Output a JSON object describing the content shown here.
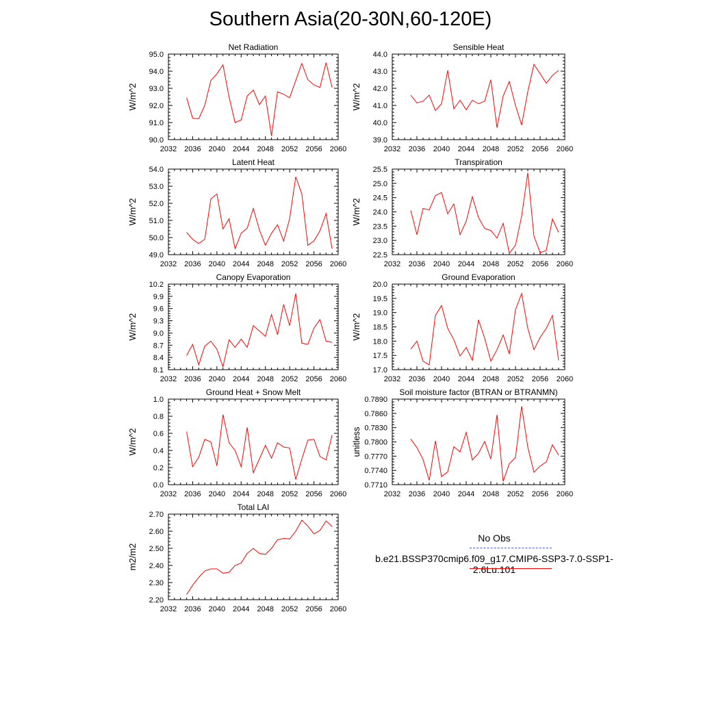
{
  "title": "Southern Asia(20-30N,60-120E)",
  "legend": {
    "obs_label": "No Obs",
    "case_label": "b.e21.BSSP370cmip6.f09_g17.CMIP6-SSP3-7.0-SSP1-2.6Lu.101",
    "obs_color": "#4a5ad8",
    "case_color": "#ff0000"
  },
  "chart_data": [
    {
      "type": "line",
      "title": "Net Radiation",
      "ylabel": "W/m^2",
      "xlabel": "",
      "xlim": [
        2032,
        2060
      ],
      "ylim": [
        90.0,
        95.0
      ],
      "xticks": [
        "2032",
        "2036",
        "2040",
        "2044",
        "2048",
        "2052",
        "2056",
        "2060"
      ],
      "yticks": [
        "90.0",
        "91.0",
        "92.0",
        "93.0",
        "94.0",
        "95.0"
      ],
      "x": [
        2035,
        2036,
        2037,
        2038,
        2039,
        2040,
        2041,
        2042,
        2043,
        2044,
        2045,
        2046,
        2047,
        2048,
        2049,
        2050,
        2051,
        2052,
        2053,
        2054,
        2055,
        2056,
        2057,
        2058,
        2059
      ],
      "values": [
        92.45,
        91.25,
        91.22,
        92.0,
        93.45,
        93.85,
        94.38,
        92.5,
        91.0,
        91.15,
        92.55,
        92.9,
        92.05,
        92.55,
        90.22,
        92.8,
        92.65,
        92.45,
        93.45,
        94.45,
        93.5,
        93.2,
        93.05,
        94.5,
        93.05
      ],
      "color": "#ff0000"
    },
    {
      "type": "line",
      "title": "Sensible Heat",
      "ylabel": "W/m^2",
      "xlabel": "",
      "xlim": [
        2032,
        2060
      ],
      "ylim": [
        39.0,
        44.0
      ],
      "xticks": [
        "2032",
        "2036",
        "2040",
        "2044",
        "2048",
        "2052",
        "2056",
        "2060"
      ],
      "yticks": [
        "39.0",
        "40.0",
        "41.0",
        "42.0",
        "43.0",
        "44.0"
      ],
      "x": [
        2035,
        2036,
        2037,
        2038,
        2039,
        2040,
        2041,
        2042,
        2043,
        2044,
        2045,
        2046,
        2047,
        2048,
        2049,
        2050,
        2051,
        2052,
        2053,
        2054,
        2055,
        2056,
        2057,
        2058,
        2059
      ],
      "values": [
        41.6,
        41.15,
        41.25,
        41.6,
        40.7,
        41.1,
        43.05,
        40.8,
        41.3,
        40.75,
        41.3,
        41.1,
        41.25,
        42.5,
        39.7,
        41.55,
        42.4,
        41.0,
        39.85,
        41.8,
        43.4,
        42.85,
        42.3,
        42.75,
        43.05
      ],
      "color": "#ff0000"
    },
    {
      "type": "line",
      "title": "Latent Heat",
      "ylabel": "W/m^2",
      "xlabel": "",
      "xlim": [
        2032,
        2060
      ],
      "ylim": [
        49.0,
        54.0
      ],
      "xticks": [
        "2032",
        "2036",
        "2040",
        "2044",
        "2048",
        "2052",
        "2056",
        "2060"
      ],
      "yticks": [
        "49.0",
        "50.0",
        "51.0",
        "52.0",
        "53.0",
        "54.0"
      ],
      "x": [
        2035,
        2036,
        2037,
        2038,
        2039,
        2040,
        2041,
        2042,
        2043,
        2044,
        2045,
        2046,
        2047,
        2048,
        2049,
        2050,
        2051,
        2052,
        2053,
        2054,
        2055,
        2056,
        2057,
        2058,
        2059
      ],
      "values": [
        50.3,
        49.9,
        49.65,
        49.9,
        52.25,
        52.55,
        50.5,
        51.1,
        49.35,
        50.25,
        50.55,
        51.7,
        50.45,
        49.55,
        50.25,
        50.75,
        49.8,
        51.1,
        53.55,
        52.55,
        49.55,
        49.8,
        50.4,
        51.4,
        49.35
      ],
      "color": "#ff0000"
    },
    {
      "type": "line",
      "title": "Transpiration",
      "ylabel": "W/m^2",
      "xlabel": "",
      "xlim": [
        2032,
        2060
      ],
      "ylim": [
        22.5,
        25.5
      ],
      "xticks": [
        "2032",
        "2036",
        "2040",
        "2044",
        "2048",
        "2052",
        "2056",
        "2060"
      ],
      "yticks": [
        "22.5",
        "23.0",
        "23.5",
        "24.0",
        "24.5",
        "25.0",
        "25.5"
      ],
      "x": [
        2035,
        2036,
        2037,
        2038,
        2039,
        2040,
        2041,
        2042,
        2043,
        2044,
        2045,
        2046,
        2047,
        2048,
        2049,
        2050,
        2051,
        2052,
        2053,
        2054,
        2055,
        2056,
        2057,
        2058,
        2059
      ],
      "values": [
        24.05,
        23.2,
        24.12,
        24.07,
        24.57,
        24.68,
        23.93,
        24.28,
        23.2,
        23.67,
        24.53,
        23.8,
        23.42,
        23.35,
        23.08,
        23.6,
        22.55,
        22.83,
        23.85,
        25.37,
        23.15,
        22.57,
        22.65,
        23.75,
        23.28
      ],
      "color": "#ff0000"
    },
    {
      "type": "line",
      "title": "Canopy Evaporation",
      "ylabel": "W/m^2",
      "xlabel": "",
      "xlim": [
        2032,
        2060
      ],
      "ylim": [
        8.1,
        10.2
      ],
      "xticks": [
        "2032",
        "2036",
        "2040",
        "2044",
        "2048",
        "2052",
        "2056",
        "2060"
      ],
      "yticks": [
        "8.1",
        "8.4",
        "8.7",
        "9.0",
        "9.3",
        "9.6",
        "9.9",
        "10.2"
      ],
      "x": [
        2035,
        2036,
        2037,
        2038,
        2039,
        2040,
        2041,
        2042,
        2043,
        2044,
        2045,
        2046,
        2047,
        2048,
        2049,
        2050,
        2051,
        2052,
        2053,
        2054,
        2055,
        2056,
        2057,
        2058,
        2059
      ],
      "values": [
        8.45,
        8.72,
        8.22,
        8.68,
        8.8,
        8.6,
        8.17,
        8.83,
        8.65,
        8.85,
        8.65,
        9.18,
        9.05,
        8.92,
        9.45,
        8.96,
        9.7,
        9.18,
        9.97,
        8.75,
        8.72,
        9.12,
        9.33,
        8.8,
        8.77
      ],
      "color": "#ff0000"
    },
    {
      "type": "line",
      "title": "Ground Evaporation",
      "ylabel": "W/m^2",
      "xlabel": "",
      "xlim": [
        2032,
        2060
      ],
      "ylim": [
        17.0,
        20.0
      ],
      "xticks": [
        "2032",
        "2036",
        "2040",
        "2044",
        "2048",
        "2052",
        "2056",
        "2060"
      ],
      "yticks": [
        "17.0",
        "17.5",
        "18.0",
        "18.5",
        "19.0",
        "19.5",
        "20.0"
      ],
      "x": [
        2035,
        2036,
        2037,
        2038,
        2039,
        2040,
        2041,
        2042,
        2043,
        2044,
        2045,
        2046,
        2047,
        2048,
        2049,
        2050,
        2051,
        2052,
        2053,
        2054,
        2055,
        2056,
        2057,
        2058,
        2059
      ],
      "values": [
        17.72,
        18.0,
        17.3,
        17.17,
        18.9,
        19.25,
        18.45,
        18.05,
        17.48,
        17.78,
        17.33,
        18.75,
        18.1,
        17.3,
        17.7,
        18.22,
        17.55,
        19.1,
        19.67,
        18.45,
        17.7,
        18.13,
        18.45,
        18.9,
        17.33
      ],
      "color": "#ff0000"
    },
    {
      "type": "line",
      "title": "Ground Heat + Snow Melt",
      "ylabel": "W/m^2",
      "xlabel": "",
      "xlim": [
        2032,
        2060
      ],
      "ylim": [
        0.0,
        1.0
      ],
      "xticks": [
        "2032",
        "2036",
        "2040",
        "2044",
        "2048",
        "2052",
        "2056",
        "2060"
      ],
      "yticks": [
        "0.0",
        "0.2",
        "0.4",
        "0.6",
        "0.8",
        "1.0"
      ],
      "x": [
        2035,
        2036,
        2037,
        2038,
        2039,
        2040,
        2041,
        2042,
        2043,
        2044,
        2045,
        2046,
        2047,
        2048,
        2049,
        2050,
        2051,
        2052,
        2053,
        2054,
        2055,
        2056,
        2057,
        2058,
        2059
      ],
      "values": [
        0.62,
        0.21,
        0.32,
        0.53,
        0.5,
        0.22,
        0.82,
        0.49,
        0.4,
        0.21,
        0.67,
        0.14,
        0.3,
        0.46,
        0.31,
        0.49,
        0.44,
        0.43,
        0.06,
        0.3,
        0.52,
        0.53,
        0.33,
        0.29,
        0.58
      ],
      "color": "#ff0000"
    },
    {
      "type": "line",
      "title": "Soil moisture factor (BTRAN or BTRANMN)",
      "ylabel": "unitless",
      "xlabel": "",
      "xlim": [
        2032,
        2060
      ],
      "ylim": [
        0.771,
        0.789
      ],
      "xticks": [
        "2032",
        "2036",
        "2040",
        "2044",
        "2048",
        "2052",
        "2056",
        "2060"
      ],
      "yticks": [
        "0.7710",
        "0.7740",
        "0.7770",
        "0.7800",
        "0.7830",
        "0.7860",
        "0.7890"
      ],
      "x": [
        2035,
        2036,
        2037,
        2038,
        2039,
        2040,
        2041,
        2042,
        2043,
        2044,
        2045,
        2046,
        2047,
        2048,
        2049,
        2050,
        2051,
        2052,
        2053,
        2054,
        2055,
        2056,
        2057,
        2058,
        2059
      ],
      "values": [
        0.7806,
        0.7788,
        0.7763,
        0.7719,
        0.7802,
        0.7727,
        0.7737,
        0.779,
        0.7779,
        0.782,
        0.7762,
        0.7776,
        0.7801,
        0.7764,
        0.7857,
        0.7717,
        0.7754,
        0.7767,
        0.7875,
        0.7789,
        0.7736,
        0.7749,
        0.7758,
        0.7794,
        0.7772
      ],
      "color": "#ff0000"
    },
    {
      "type": "line",
      "title": "Total LAI",
      "ylabel": "m2/m2",
      "xlabel": "",
      "xlim": [
        2032,
        2060
      ],
      "ylim": [
        2.2,
        2.7
      ],
      "xticks": [
        "2032",
        "2036",
        "2040",
        "2044",
        "2048",
        "2052",
        "2056",
        "2060"
      ],
      "yticks": [
        "2.20",
        "2.30",
        "2.40",
        "2.50",
        "2.60",
        "2.70"
      ],
      "x": [
        2035,
        2036,
        2037,
        2038,
        2039,
        2040,
        2041,
        2042,
        2043,
        2044,
        2045,
        2046,
        2047,
        2048,
        2049,
        2050,
        2051,
        2052,
        2053,
        2054,
        2055,
        2056,
        2057,
        2058,
        2059
      ],
      "values": [
        2.23,
        2.285,
        2.33,
        2.368,
        2.38,
        2.38,
        2.355,
        2.36,
        2.4,
        2.415,
        2.47,
        2.5,
        2.47,
        2.465,
        2.5,
        2.55,
        2.558,
        2.555,
        2.6,
        2.665,
        2.63,
        2.585,
        2.605,
        2.66,
        2.628
      ],
      "color": "#ff0000"
    }
  ]
}
